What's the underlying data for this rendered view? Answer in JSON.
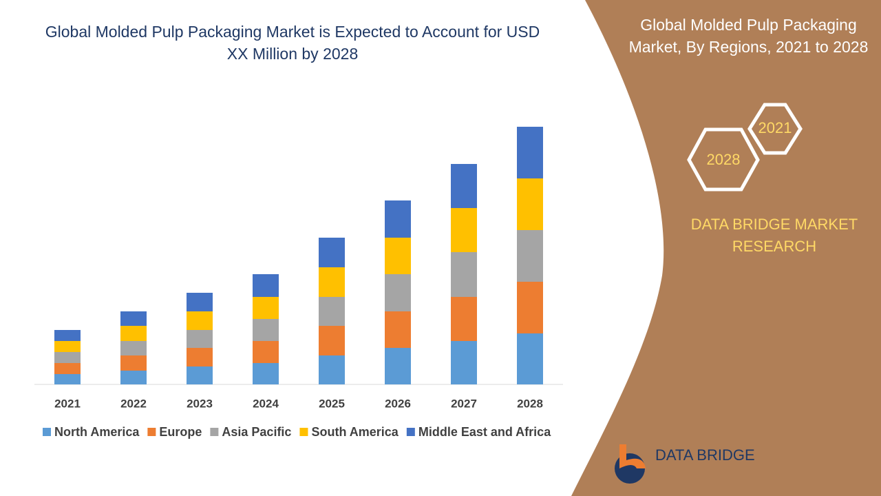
{
  "chart_data": {
    "type": "stacked-bar",
    "title": "Global Molded Pulp Packaging Market is Expected to Account for USD XX Million by 2028",
    "categories": [
      "2021",
      "2022",
      "2023",
      "2024",
      "2025",
      "2026",
      "2027",
      "2028"
    ],
    "series": [
      {
        "name": "North America",
        "color": "#5b9bd5",
        "values": [
          15,
          20,
          26,
          31,
          42,
          53,
          63,
          74
        ]
      },
      {
        "name": "Europe",
        "color": "#ed7d31",
        "values": [
          16,
          22,
          27,
          32,
          43,
          53,
          64,
          75
        ]
      },
      {
        "name": "Asia Pacific",
        "color": "#a5a5a5",
        "values": [
          16,
          21,
          26,
          32,
          42,
          54,
          65,
          75
        ]
      },
      {
        "name": "South America",
        "color": "#ffc000",
        "values": [
          16,
          22,
          27,
          32,
          43,
          53,
          64,
          75
        ]
      },
      {
        "name": "Middle East and Africa",
        "color": "#4472c4",
        "values": [
          16,
          21,
          27,
          33,
          43,
          54,
          64,
          75
        ]
      }
    ]
  },
  "panel": {
    "title": "Global Molded Pulp Packaging Market, By Regions, 2021 to 2028",
    "hex_start": "2021",
    "hex_end": "2028",
    "brand": "DATA BRIDGE MARKET RESEARCH",
    "logo": "DATA BRIDGE"
  }
}
